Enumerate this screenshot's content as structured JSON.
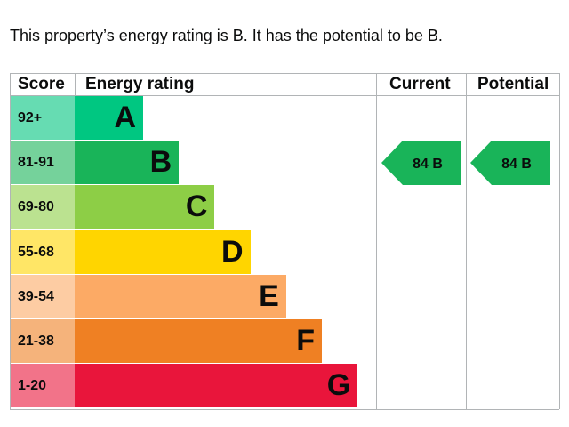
{
  "summary": "This property’s energy rating is B. It has the potential to be B.",
  "headers": {
    "score": "Score",
    "energy_rating": "Energy rating",
    "current": "Current",
    "potential": "Potential"
  },
  "chart_data": {
    "type": "bar",
    "title": "",
    "categories": [
      "A",
      "B",
      "C",
      "D",
      "E",
      "F",
      "G"
    ],
    "score_ranges": [
      "92+",
      "81-91",
      "69-80",
      "55-68",
      "39-54",
      "21-38",
      "1-20"
    ],
    "band_colors": [
      "#00c781",
      "#19b459",
      "#8dce46",
      "#ffd500",
      "#fcaa65",
      "#ef8023",
      "#e9153b"
    ],
    "score_colors": [
      "#66dcb2",
      "#75d29b",
      "#bbe290",
      "#ffe666",
      "#fdcca3",
      "#f5b37b",
      "#f27389"
    ],
    "current": {
      "value": 84,
      "band": "B",
      "label": "84 B",
      "color": "#19b459"
    },
    "potential": {
      "value": 84,
      "band": "B",
      "label": "84 B",
      "color": "#19b459"
    }
  }
}
